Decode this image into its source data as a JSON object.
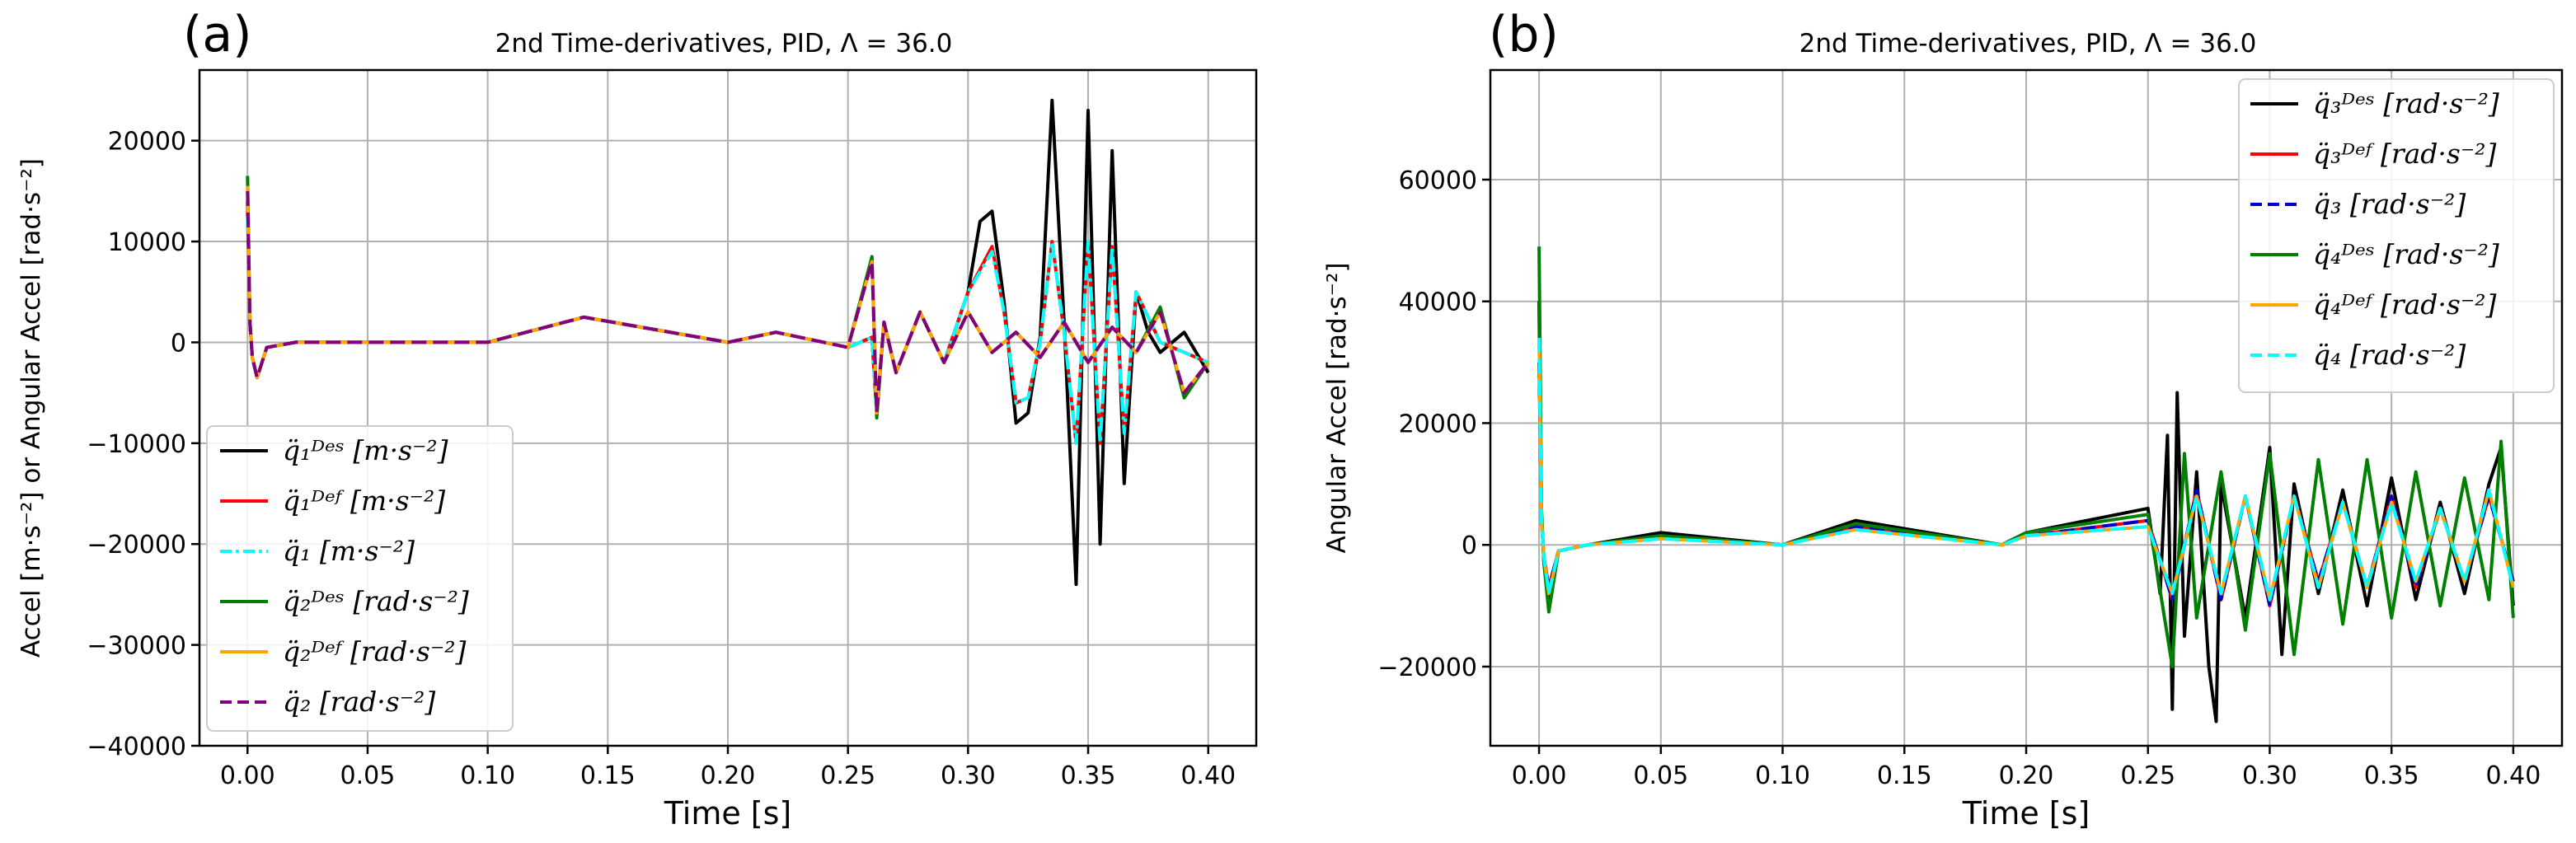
{
  "chart_data": [
    {
      "panel_label": "(a)",
      "type": "line",
      "title": "2nd Time-derivatives, PID, Λ = 36.0",
      "xlabel": "Time [s]",
      "ylabel": "Accel [m·s⁻²] or Angular Accel [rad·s⁻²]",
      "xlim": [
        -0.02,
        0.42
      ],
      "ylim": [
        -40000,
        27000
      ],
      "xticks": [
        0.0,
        0.05,
        0.1,
        0.15,
        0.2,
        0.25,
        0.3,
        0.35,
        0.4
      ],
      "xtick_labels": [
        "0.00",
        "0.05",
        "0.10",
        "0.15",
        "0.20",
        "0.25",
        "0.30",
        "0.35",
        "0.40"
      ],
      "yticks": [
        -40000,
        -30000,
        -20000,
        -10000,
        0,
        10000,
        20000
      ],
      "ytick_labels": [
        "−40000",
        "−30000",
        "−20000",
        "−10000",
        "0",
        "10000",
        "20000"
      ],
      "grid": true,
      "legend_position": "lower-left",
      "series": [
        {
          "name": "q̈₁ᴰᵉˢ [m·s⁻²]",
          "color": "#000000",
          "dash": "solid",
          "x": [
            0,
            0.001,
            0.002,
            0.004,
            0.008,
            0.02,
            0.05,
            0.1,
            0.14,
            0.2,
            0.22,
            0.25,
            0.26,
            0.262,
            0.265,
            0.27,
            0.28,
            0.29,
            0.3,
            0.305,
            0.31,
            0.315,
            0.32,
            0.325,
            0.33,
            0.335,
            0.34,
            0.345,
            0.35,
            0.355,
            0.36,
            0.365,
            0.37,
            0.375,
            0.38,
            0.39,
            0.4
          ],
          "y": [
            14000,
            2000,
            -1500,
            -3500,
            -500,
            0,
            0,
            0,
            2500,
            0,
            1000,
            -500,
            500,
            -7000,
            2000,
            -3000,
            3000,
            -2000,
            5000,
            12000,
            13000,
            4000,
            -8000,
            -7000,
            500,
            24000,
            2000,
            -24000,
            23000,
            -20000,
            19000,
            -14000,
            5000,
            1000,
            -1000,
            1000,
            -3000
          ]
        },
        {
          "name": "q̈₁ᴰᵉᶠ [m·s⁻²]",
          "color": "#ff0000",
          "dash": "solid",
          "x": [
            0,
            0.001,
            0.002,
            0.004,
            0.008,
            0.02,
            0.05,
            0.1,
            0.14,
            0.2,
            0.22,
            0.25,
            0.26,
            0.262,
            0.265,
            0.27,
            0.28,
            0.29,
            0.3,
            0.31,
            0.315,
            0.32,
            0.325,
            0.33,
            0.335,
            0.34,
            0.345,
            0.35,
            0.355,
            0.36,
            0.365,
            0.37,
            0.38,
            0.4
          ],
          "y": [
            13000,
            2000,
            -1500,
            -3500,
            -500,
            0,
            0,
            0,
            2500,
            0,
            1000,
            -500,
            500,
            -7000,
            2000,
            -3000,
            3000,
            -2000,
            5000,
            9500,
            3000,
            -6000,
            -5500,
            0,
            10000,
            1000,
            -10000,
            10000,
            -10000,
            9500,
            -9000,
            5000,
            0,
            -2000
          ]
        },
        {
          "name": "q̈₁ [m·s⁻²]",
          "color": "#00ffff",
          "dash": "dashdot",
          "x": [
            0,
            0.001,
            0.002,
            0.004,
            0.008,
            0.02,
            0.05,
            0.1,
            0.14,
            0.2,
            0.22,
            0.25,
            0.26,
            0.262,
            0.265,
            0.27,
            0.28,
            0.29,
            0.3,
            0.31,
            0.315,
            0.32,
            0.325,
            0.33,
            0.335,
            0.34,
            0.345,
            0.35,
            0.355,
            0.36,
            0.365,
            0.37,
            0.38,
            0.4
          ],
          "y": [
            12500,
            2000,
            -1500,
            -3500,
            -500,
            0,
            0,
            0,
            2500,
            0,
            1000,
            -500,
            500,
            -7000,
            2000,
            -3000,
            3000,
            -2000,
            5000,
            9000,
            3000,
            -6000,
            -5500,
            0,
            10000,
            1000,
            -10000,
            10000,
            -10000,
            9500,
            -9000,
            5000,
            0,
            -2000
          ]
        },
        {
          "name": "q̈₂ᴰᵉˢ [rad·s⁻²]",
          "color": "#008000",
          "dash": "solid",
          "x": [
            0,
            0.001,
            0.002,
            0.004,
            0.008,
            0.02,
            0.05,
            0.1,
            0.14,
            0.2,
            0.22,
            0.25,
            0.26,
            0.262,
            0.265,
            0.27,
            0.28,
            0.29,
            0.3,
            0.31,
            0.32,
            0.33,
            0.34,
            0.35,
            0.36,
            0.37,
            0.38,
            0.39,
            0.4
          ],
          "y": [
            16500,
            2000,
            -1500,
            -3500,
            -500,
            0,
            0,
            0,
            2500,
            0,
            1000,
            -500,
            8500,
            -7500,
            2000,
            -3000,
            3000,
            -2000,
            3000,
            -1000,
            1000,
            -1500,
            2000,
            -2000,
            1500,
            -1000,
            3500,
            -5500,
            -2000
          ]
        },
        {
          "name": "q̈₂ᴰᵉᶠ [rad·s⁻²]",
          "color": "#ffa500",
          "dash": "solid",
          "x": [
            0,
            0.001,
            0.002,
            0.004,
            0.008,
            0.02,
            0.05,
            0.1,
            0.14,
            0.2,
            0.22,
            0.25,
            0.26,
            0.262,
            0.265,
            0.27,
            0.28,
            0.29,
            0.3,
            0.31,
            0.32,
            0.33,
            0.34,
            0.35,
            0.36,
            0.37,
            0.38,
            0.39,
            0.4
          ],
          "y": [
            15500,
            2000,
            -1500,
            -3500,
            -500,
            0,
            0,
            0,
            2500,
            0,
            1000,
            -500,
            8000,
            -7000,
            2000,
            -3000,
            3000,
            -2000,
            3000,
            -1000,
            1000,
            -1500,
            2000,
            -2000,
            1500,
            -1000,
            3000,
            -5000,
            -2000
          ]
        },
        {
          "name": "q̈₂ [rad·s⁻²]",
          "color": "#800080",
          "dash": "dash",
          "x": [
            0,
            0.001,
            0.002,
            0.004,
            0.008,
            0.02,
            0.05,
            0.1,
            0.14,
            0.2,
            0.22,
            0.25,
            0.26,
            0.262,
            0.265,
            0.27,
            0.28,
            0.29,
            0.3,
            0.31,
            0.32,
            0.33,
            0.34,
            0.35,
            0.36,
            0.37,
            0.38,
            0.39,
            0.4
          ],
          "y": [
            15000,
            2000,
            -1500,
            -3500,
            -500,
            0,
            0,
            0,
            2500,
            0,
            1000,
            -500,
            8000,
            -7000,
            2000,
            -3000,
            3000,
            -2000,
            3000,
            -1000,
            1000,
            -1500,
            2000,
            -2000,
            1500,
            -1000,
            3000,
            -5000,
            -2000
          ]
        }
      ]
    },
    {
      "panel_label": "(b)",
      "type": "line",
      "title": "2nd Time-derivatives, PID, Λ = 36.0",
      "xlabel": "Time [s]",
      "ylabel": "Angular Accel [rad·s⁻²]",
      "xlim": [
        -0.02,
        0.42
      ],
      "ylim": [
        -33000,
        78000
      ],
      "xticks": [
        0.0,
        0.05,
        0.1,
        0.15,
        0.2,
        0.25,
        0.3,
        0.35,
        0.4
      ],
      "xtick_labels": [
        "0.00",
        "0.05",
        "0.10",
        "0.15",
        "0.20",
        "0.25",
        "0.30",
        "0.35",
        "0.40"
      ],
      "yticks": [
        -20000,
        0,
        20000,
        40000,
        60000
      ],
      "ytick_labels": [
        "−20000",
        "0",
        "20000",
        "40000",
        "60000"
      ],
      "grid": true,
      "legend_position": "upper-right",
      "series": [
        {
          "name": "q̈₃ᴰᵉˢ [rad·s⁻²]",
          "color": "#000000",
          "dash": "solid",
          "x": [
            0,
            0.001,
            0.002,
            0.004,
            0.008,
            0.02,
            0.05,
            0.1,
            0.13,
            0.19,
            0.2,
            0.25,
            0.255,
            0.258,
            0.26,
            0.262,
            0.265,
            0.27,
            0.275,
            0.278,
            0.28,
            0.29,
            0.3,
            0.305,
            0.31,
            0.32,
            0.33,
            0.34,
            0.35,
            0.36,
            0.37,
            0.38,
            0.39,
            0.395,
            0.4
          ],
          "y": [
            40000,
            5000,
            -3000,
            -9000,
            -1000,
            0,
            2000,
            0,
            4000,
            0,
            2000,
            6000,
            -8000,
            18000,
            -27000,
            25000,
            -15000,
            12000,
            -20000,
            -29000,
            10000,
            -12000,
            16000,
            -18000,
            10000,
            -8000,
            9000,
            -10000,
            11000,
            -9000,
            7000,
            -8000,
            10000,
            16000,
            -10000
          ]
        },
        {
          "name": "q̈₃ᴰᵉᶠ [rad·s⁻²]",
          "color": "#ff0000",
          "dash": "solid",
          "x": [
            0,
            0.001,
            0.002,
            0.004,
            0.008,
            0.02,
            0.05,
            0.1,
            0.13,
            0.19,
            0.2,
            0.25,
            0.26,
            0.27,
            0.28,
            0.29,
            0.3,
            0.31,
            0.32,
            0.33,
            0.34,
            0.35,
            0.36,
            0.37,
            0.38,
            0.39,
            0.4
          ],
          "y": [
            30000,
            4000,
            -2000,
            -7000,
            -1000,
            0,
            1500,
            0,
            3000,
            0,
            1500,
            4000,
            -9000,
            9000,
            -9000,
            8000,
            -10000,
            8000,
            -6000,
            7000,
            -7000,
            8000,
            -7000,
            6000,
            -6000,
            8000,
            -6000
          ]
        },
        {
          "name": "q̈₃ [rad·s⁻²]",
          "color": "#0000cc",
          "dash": "dash",
          "x": [
            0,
            0.001,
            0.002,
            0.004,
            0.008,
            0.02,
            0.05,
            0.1,
            0.13,
            0.19,
            0.2,
            0.25,
            0.26,
            0.27,
            0.28,
            0.29,
            0.3,
            0.31,
            0.32,
            0.33,
            0.34,
            0.35,
            0.36,
            0.37,
            0.38,
            0.39,
            0.4
          ],
          "y": [
            30000,
            4000,
            -2000,
            -7000,
            -1000,
            0,
            1500,
            0,
            3000,
            0,
            1500,
            4000,
            -9000,
            9000,
            -9000,
            8000,
            -10000,
            8000,
            -6000,
            7000,
            -7000,
            8000,
            -7000,
            6000,
            -6000,
            8000,
            -6000
          ]
        },
        {
          "name": "q̈₄ᴰᵉˢ [rad·s⁻²]",
          "color": "#008000",
          "dash": "solid",
          "x": [
            0,
            0.001,
            0.002,
            0.004,
            0.008,
            0.02,
            0.05,
            0.1,
            0.13,
            0.19,
            0.2,
            0.25,
            0.26,
            0.265,
            0.27,
            0.28,
            0.29,
            0.3,
            0.31,
            0.32,
            0.33,
            0.34,
            0.35,
            0.36,
            0.37,
            0.38,
            0.39,
            0.395,
            0.4
          ],
          "y": [
            49000,
            6000,
            -3000,
            -11000,
            -1000,
            0,
            1500,
            0,
            3500,
            0,
            2000,
            5000,
            -20000,
            15000,
            -12000,
            12000,
            -14000,
            15000,
            -18000,
            14000,
            -13000,
            14000,
            -12000,
            12000,
            -10000,
            11000,
            -9000,
            17000,
            -12000
          ]
        },
        {
          "name": "q̈₄ᴰᵉᶠ [rad·s⁻²]",
          "color": "#ffa500",
          "dash": "solid",
          "x": [
            0,
            0.001,
            0.002,
            0.004,
            0.008,
            0.02,
            0.05,
            0.1,
            0.13,
            0.19,
            0.2,
            0.25,
            0.26,
            0.27,
            0.28,
            0.29,
            0.3,
            0.31,
            0.32,
            0.33,
            0.34,
            0.35,
            0.36,
            0.37,
            0.38,
            0.39,
            0.4
          ],
          "y": [
            34000,
            4000,
            -2000,
            -8000,
            -1000,
            0,
            1000,
            0,
            2500,
            0,
            1500,
            3000,
            -8000,
            8000,
            -8000,
            8000,
            -9000,
            8000,
            -7000,
            7000,
            -7000,
            7000,
            -6000,
            6000,
            -6000,
            9000,
            -7000
          ]
        },
        {
          "name": "q̈₄ [rad·s⁻²]",
          "color": "#00ffff",
          "dash": "dash",
          "x": [
            0,
            0.001,
            0.002,
            0.004,
            0.008,
            0.02,
            0.05,
            0.1,
            0.13,
            0.19,
            0.2,
            0.25,
            0.26,
            0.27,
            0.28,
            0.29,
            0.3,
            0.31,
            0.32,
            0.33,
            0.34,
            0.35,
            0.36,
            0.37,
            0.38,
            0.39,
            0.4
          ],
          "y": [
            34000,
            4000,
            -2000,
            -8000,
            -1000,
            0,
            1000,
            0,
            2500,
            0,
            1500,
            3000,
            -8000,
            8000,
            -8000,
            8000,
            -9000,
            8000,
            -7000,
            7000,
            -7000,
            7000,
            -6000,
            6000,
            -6000,
            9000,
            -7000
          ]
        }
      ]
    }
  ]
}
